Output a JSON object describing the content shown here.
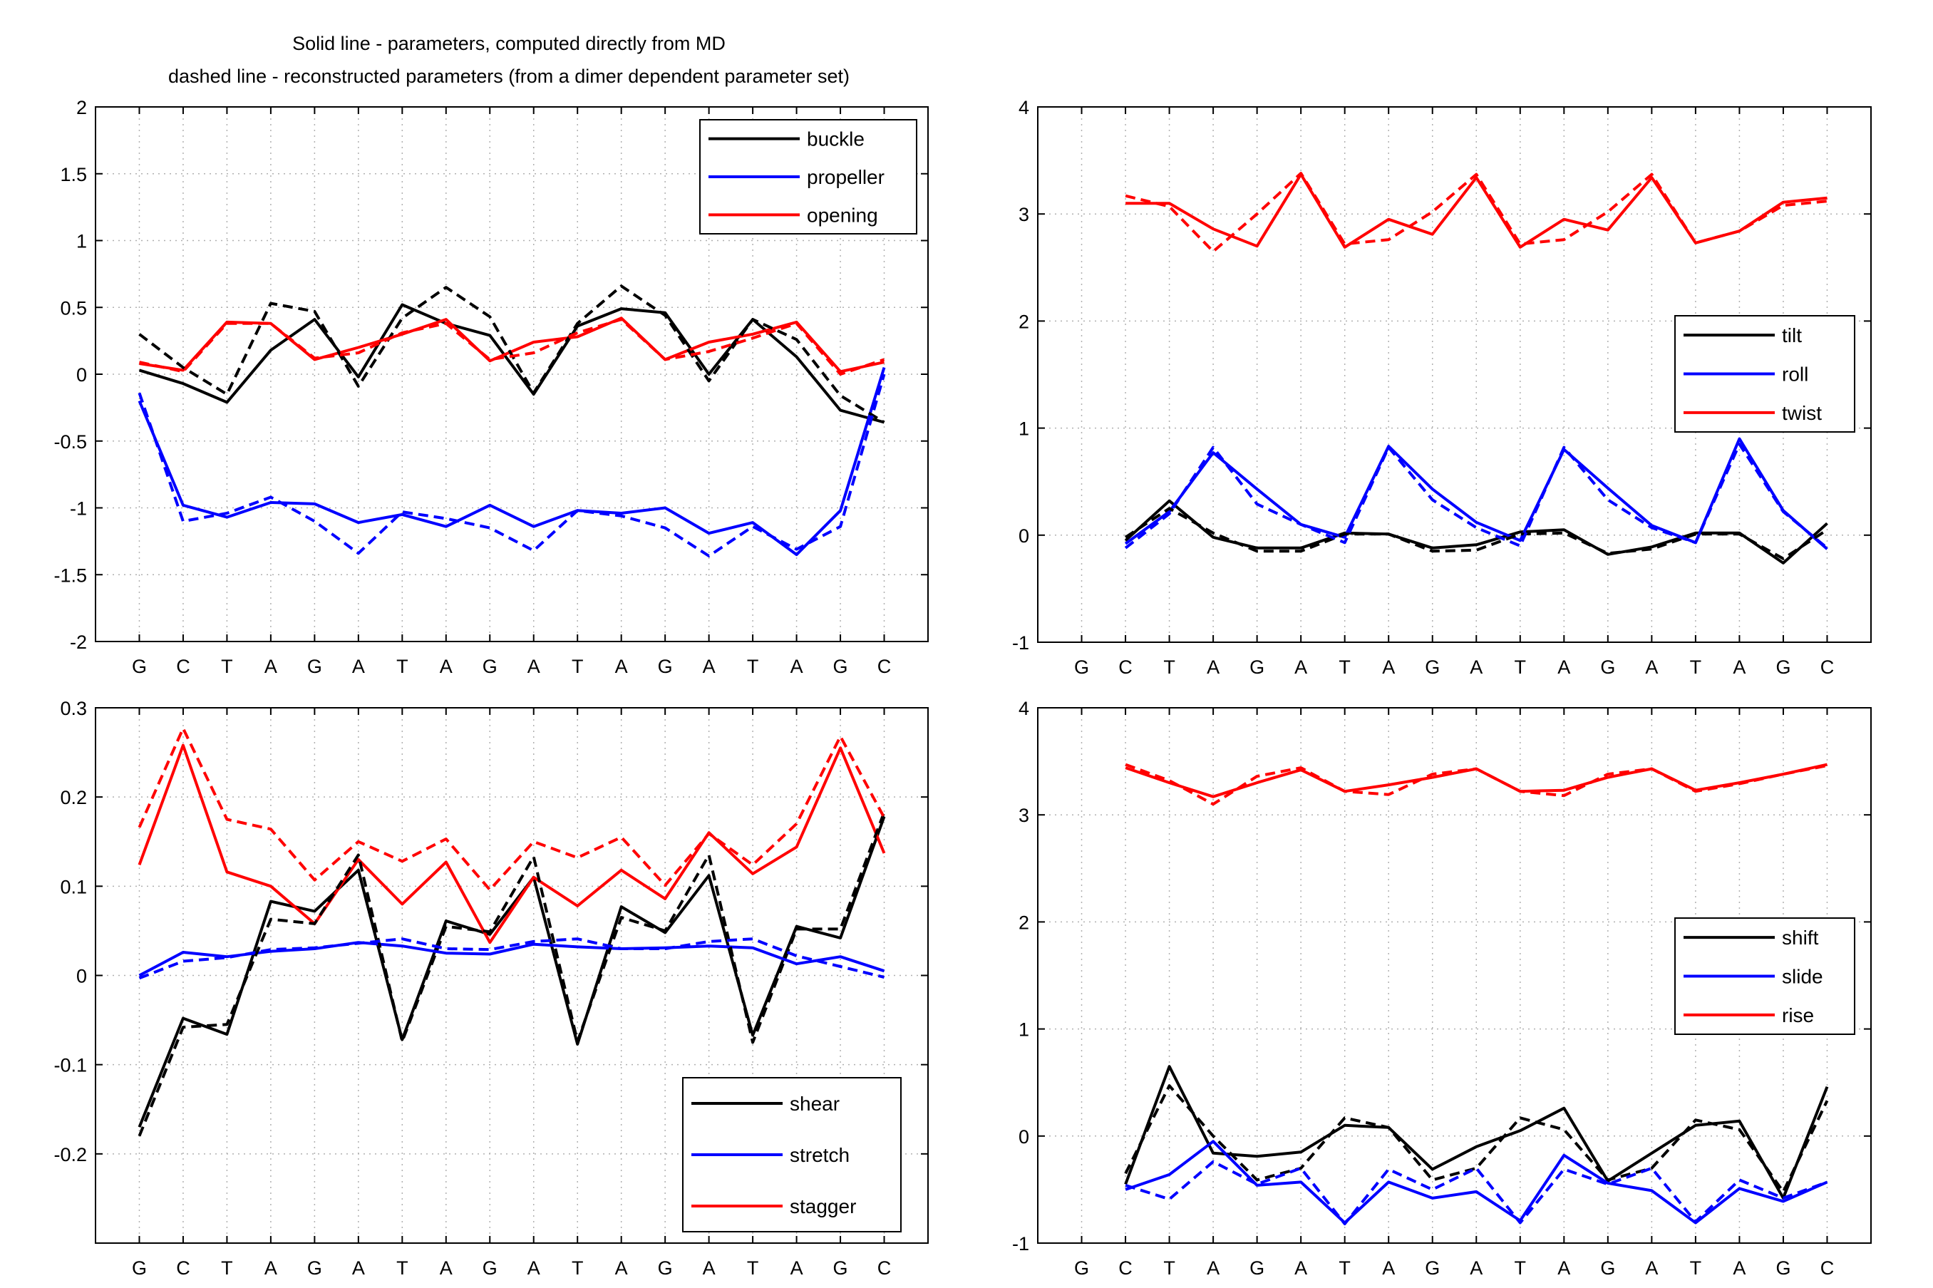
{
  "figure_title": [
    "Solid line - parameters, computed directly from MD",
    "dashed line - reconstructed parameters (from a dimer dependent parameter set)"
  ],
  "legend_note": {
    "solid": "computed directly from MD",
    "dashed": "reconstructed parameters"
  },
  "colors": {
    "black": "#000000",
    "blue": "#0000ff",
    "red": "#ff0000",
    "grid": "#b0b0b0"
  },
  "chart_data": [
    {
      "type": "line",
      "title": "",
      "categories": [
        "G",
        "C",
        "T",
        "A",
        "G",
        "A",
        "T",
        "A",
        "G",
        "A",
        "T",
        "A",
        "G",
        "A",
        "T",
        "A",
        "G",
        "C"
      ],
      "x": [
        1,
        2,
        3,
        4,
        5,
        6,
        7,
        8,
        9,
        10,
        11,
        12,
        13,
        14,
        15,
        16,
        17,
        18
      ],
      "xlim": [
        0,
        19
      ],
      "ylim": [
        -2,
        2
      ],
      "yticks": [
        -2,
        -1.5,
        -1,
        -0.5,
        0,
        0.5,
        1,
        1.5,
        2
      ],
      "yticklabels": [
        "-2",
        "-1.5",
        "-1",
        "-0.5",
        "0",
        "0.5",
        "1",
        "1.5",
        "2"
      ],
      "grid": true,
      "legend_placement": "top-right",
      "series": [
        {
          "name": "buckle",
          "color": "#000000",
          "style": "solid",
          "values": [
            0.03,
            -0.07,
            -0.21,
            0.18,
            0.41,
            -0.02,
            0.52,
            0.38,
            0.29,
            -0.15,
            0.36,
            0.49,
            0.46,
            0.0,
            0.41,
            0.13,
            -0.27,
            -0.36
          ]
        },
        {
          "name": "propeller",
          "color": "#0000ff",
          "style": "solid",
          "values": [
            -0.2,
            -0.98,
            -1.07,
            -0.96,
            -0.97,
            -1.11,
            -1.05,
            -1.14,
            -0.98,
            -1.14,
            -1.02,
            -1.04,
            -1.0,
            -1.19,
            -1.11,
            -1.35,
            -1.02,
            0.05
          ]
        },
        {
          "name": "opening",
          "color": "#ff0000",
          "style": "solid",
          "values": [
            0.08,
            0.03,
            0.39,
            0.38,
            0.11,
            0.2,
            0.3,
            0.41,
            0.1,
            0.24,
            0.28,
            0.42,
            0.11,
            0.24,
            0.3,
            0.39,
            0.02,
            0.09
          ]
        },
        {
          "name": "",
          "color": "#000000",
          "style": "dashed",
          "values": [
            0.3,
            0.05,
            -0.15,
            0.53,
            0.47,
            -0.09,
            0.42,
            0.65,
            0.43,
            -0.14,
            0.38,
            0.66,
            0.44,
            -0.05,
            0.41,
            0.26,
            -0.16,
            -0.36
          ]
        },
        {
          "name": "",
          "color": "#0000ff",
          "style": "dashed",
          "values": [
            -0.14,
            -1.1,
            -1.04,
            -0.92,
            -1.1,
            -1.34,
            -1.03,
            -1.08,
            -1.15,
            -1.32,
            -1.02,
            -1.06,
            -1.15,
            -1.36,
            -1.14,
            -1.31,
            -1.14,
            0.0
          ]
        },
        {
          "name": "",
          "color": "#ff0000",
          "style": "dashed",
          "values": [
            0.09,
            0.02,
            0.38,
            0.38,
            0.12,
            0.16,
            0.31,
            0.38,
            0.11,
            0.16,
            0.31,
            0.41,
            0.11,
            0.17,
            0.27,
            0.38,
            0.0,
            0.11
          ]
        }
      ]
    },
    {
      "type": "line",
      "title": "",
      "categories": [
        "G",
        "C",
        "T",
        "A",
        "G",
        "A",
        "T",
        "A",
        "G",
        "A",
        "T",
        "A",
        "G",
        "A",
        "T",
        "A",
        "G",
        "C"
      ],
      "x": [
        1,
        2,
        3,
        4,
        5,
        6,
        7,
        8,
        9,
        10,
        11,
        12,
        13,
        14,
        15,
        16,
        17,
        18
      ],
      "xlim": [
        0,
        19
      ],
      "ylim": [
        -1,
        4
      ],
      "yticks": [
        -1,
        0,
        1,
        2,
        3,
        4
      ],
      "yticklabels": [
        "-1",
        "0",
        "1",
        "2",
        "3",
        "4"
      ],
      "grid": true,
      "legend_placement": "right",
      "series": [
        {
          "name": "tilt",
          "color": "#000000",
          "style": "solid",
          "values": [
            null,
            -0.05,
            0.32,
            -0.02,
            -0.12,
            -0.12,
            0.02,
            0.01,
            -0.12,
            -0.09,
            0.03,
            0.05,
            -0.18,
            -0.11,
            0.02,
            0.02,
            -0.26,
            0.11
          ]
        },
        {
          "name": "roll",
          "color": "#0000ff",
          "style": "solid",
          "values": [
            null,
            -0.08,
            0.22,
            0.77,
            0.43,
            0.1,
            -0.02,
            0.83,
            0.43,
            0.12,
            -0.05,
            0.8,
            0.44,
            0.09,
            -0.07,
            0.9,
            0.23,
            -0.13
          ]
        },
        {
          "name": "twist",
          "color": "#ff0000",
          "style": "solid",
          "values": [
            null,
            3.1,
            3.1,
            2.86,
            2.7,
            3.37,
            2.69,
            2.95,
            2.81,
            3.34,
            2.69,
            2.95,
            2.85,
            3.34,
            2.73,
            2.84,
            3.11,
            3.15
          ]
        },
        {
          "name": "",
          "color": "#000000",
          "style": "dashed",
          "values": [
            null,
            -0.02,
            0.25,
            0.02,
            -0.15,
            -0.15,
            0.01,
            0.01,
            -0.15,
            -0.14,
            0.01,
            0.02,
            -0.17,
            -0.13,
            0.01,
            0.01,
            -0.22,
            0.05
          ]
        },
        {
          "name": "",
          "color": "#0000ff",
          "style": "dashed",
          "values": [
            null,
            -0.12,
            0.2,
            0.82,
            0.29,
            0.1,
            -0.07,
            0.82,
            0.33,
            0.07,
            -0.1,
            0.82,
            0.33,
            0.07,
            -0.07,
            0.85,
            0.22,
            -0.12
          ]
        },
        {
          "name": "",
          "color": "#ff0000",
          "style": "dashed",
          "values": [
            null,
            3.17,
            3.07,
            2.65,
            3.0,
            3.38,
            2.72,
            2.76,
            3.02,
            3.37,
            2.72,
            2.76,
            3.02,
            3.37,
            2.73,
            2.84,
            3.08,
            3.12
          ]
        }
      ]
    },
    {
      "type": "line",
      "title": "",
      "categories": [
        "G",
        "C",
        "T",
        "A",
        "G",
        "A",
        "T",
        "A",
        "G",
        "A",
        "T",
        "A",
        "G",
        "A",
        "T",
        "A",
        "G",
        "C"
      ],
      "x": [
        1,
        2,
        3,
        4,
        5,
        6,
        7,
        8,
        9,
        10,
        11,
        12,
        13,
        14,
        15,
        16,
        17,
        18
      ],
      "xlim": [
        0,
        19
      ],
      "ylim": [
        -0.3,
        0.3
      ],
      "yticks": [
        -0.2,
        -0.1,
        0,
        0.1,
        0.2,
        0.3
      ],
      "yticklabels": [
        "-0.2",
        "-0.1",
        "0",
        "0.1",
        "0.2",
        "0.3"
      ],
      "grid": true,
      "legend_placement": "bottom-right",
      "series": [
        {
          "name": "shear",
          "color": "#000000",
          "style": "solid",
          "values": [
            -0.17,
            -0.048,
            -0.066,
            0.083,
            0.072,
            0.118,
            -0.072,
            0.061,
            0.046,
            0.11,
            -0.077,
            0.077,
            0.048,
            0.112,
            -0.067,
            0.055,
            0.042,
            0.178
          ]
        },
        {
          "name": "stretch",
          "color": "#0000ff",
          "style": "solid",
          "values": [
            0.0,
            0.026,
            0.021,
            0.027,
            0.03,
            0.037,
            0.033,
            0.025,
            0.024,
            0.035,
            0.032,
            0.03,
            0.031,
            0.033,
            0.031,
            0.013,
            0.021,
            0.005
          ]
        },
        {
          "name": "stagger",
          "color": "#ff0000",
          "style": "solid",
          "values": [
            0.124,
            0.258,
            0.116,
            0.1,
            0.058,
            0.13,
            0.08,
            0.127,
            0.037,
            0.11,
            0.078,
            0.118,
            0.086,
            0.16,
            0.114,
            0.144,
            0.255,
            0.137
          ]
        },
        {
          "name": "",
          "color": "#000000",
          "style": "dashed",
          "values": [
            -0.18,
            -0.058,
            -0.055,
            0.063,
            0.058,
            0.135,
            -0.074,
            0.055,
            0.049,
            0.133,
            -0.074,
            0.065,
            0.05,
            0.135,
            -0.075,
            0.052,
            0.052,
            0.183
          ]
        },
        {
          "name": "",
          "color": "#0000ff",
          "style": "dashed",
          "values": [
            -0.003,
            0.016,
            0.02,
            0.029,
            0.031,
            0.036,
            0.041,
            0.03,
            0.029,
            0.038,
            0.041,
            0.03,
            0.03,
            0.038,
            0.041,
            0.022,
            0.01,
            -0.002
          ]
        },
        {
          "name": "",
          "color": "#ff0000",
          "style": "dashed",
          "values": [
            0.166,
            0.277,
            0.175,
            0.164,
            0.107,
            0.15,
            0.128,
            0.153,
            0.096,
            0.15,
            0.132,
            0.155,
            0.101,
            0.159,
            0.124,
            0.17,
            0.268,
            0.177
          ]
        }
      ]
    },
    {
      "type": "line",
      "title": "",
      "categories": [
        "G",
        "C",
        "T",
        "A",
        "G",
        "A",
        "T",
        "A",
        "G",
        "A",
        "T",
        "A",
        "G",
        "A",
        "T",
        "A",
        "G",
        "C"
      ],
      "x": [
        1,
        2,
        3,
        4,
        5,
        6,
        7,
        8,
        9,
        10,
        11,
        12,
        13,
        14,
        15,
        16,
        17,
        18
      ],
      "xlim": [
        0,
        19
      ],
      "ylim": [
        -1,
        4
      ],
      "yticks": [
        -1,
        0,
        1,
        2,
        3,
        4
      ],
      "yticklabels": [
        "-1",
        "0",
        "1",
        "2",
        "3",
        "4"
      ],
      "grid": true,
      "legend_placement": "right",
      "series": [
        {
          "name": "shift",
          "color": "#000000",
          "style": "solid",
          "values": [
            null,
            -0.45,
            0.65,
            -0.16,
            -0.19,
            -0.15,
            0.1,
            0.08,
            -0.31,
            -0.1,
            0.05,
            0.26,
            -0.42,
            -0.16,
            0.1,
            0.14,
            -0.58,
            0.46
          ]
        },
        {
          "name": "slide",
          "color": "#0000ff",
          "style": "solid",
          "values": [
            null,
            -0.5,
            -0.36,
            -0.05,
            -0.46,
            -0.43,
            -0.81,
            -0.43,
            -0.58,
            -0.52,
            -0.79,
            -0.18,
            -0.44,
            -0.51,
            -0.81,
            -0.49,
            -0.61,
            -0.43
          ]
        },
        {
          "name": "rise",
          "color": "#ff0000",
          "style": "solid",
          "values": [
            null,
            3.44,
            3.3,
            3.17,
            3.3,
            3.42,
            3.22,
            3.28,
            3.35,
            3.43,
            3.22,
            3.23,
            3.35,
            3.43,
            3.23,
            3.3,
            3.38,
            3.47
          ]
        },
        {
          "name": "",
          "color": "#000000",
          "style": "dashed",
          "values": [
            null,
            -0.35,
            0.47,
            0.0,
            -0.41,
            -0.3,
            0.17,
            0.08,
            -0.41,
            -0.3,
            0.17,
            0.06,
            -0.41,
            -0.3,
            0.15,
            0.06,
            -0.52,
            0.33
          ]
        },
        {
          "name": "",
          "color": "#0000ff",
          "style": "dashed",
          "values": [
            null,
            -0.46,
            -0.59,
            -0.24,
            -0.45,
            -0.3,
            -0.82,
            -0.31,
            -0.5,
            -0.3,
            -0.81,
            -0.31,
            -0.45,
            -0.3,
            -0.8,
            -0.41,
            -0.58,
            -0.43
          ]
        },
        {
          "name": "",
          "color": "#ff0000",
          "style": "dashed",
          "values": [
            null,
            3.47,
            3.32,
            3.1,
            3.36,
            3.44,
            3.22,
            3.19,
            3.38,
            3.43,
            3.22,
            3.18,
            3.38,
            3.43,
            3.22,
            3.29,
            3.38,
            3.46
          ]
        }
      ]
    }
  ]
}
